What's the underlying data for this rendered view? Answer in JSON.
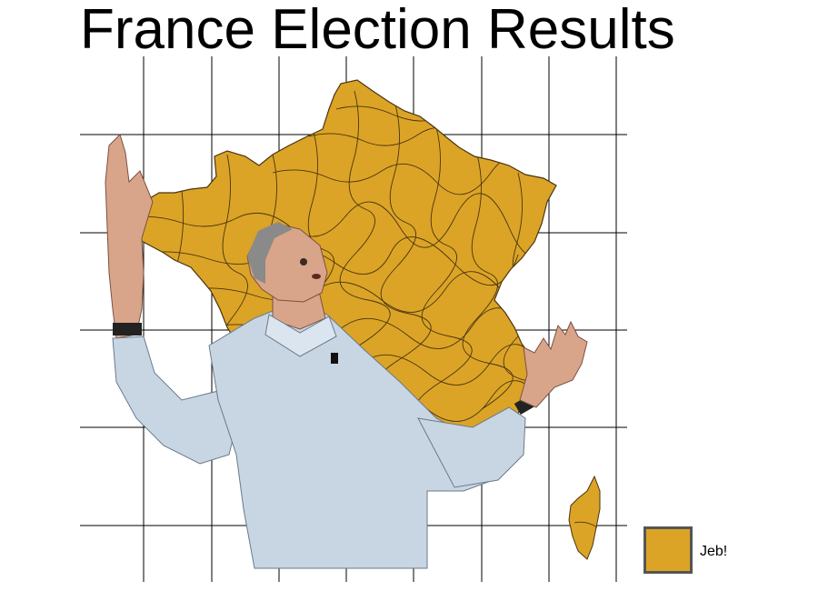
{
  "title": "France Election Results",
  "map": {
    "region_color": "#DBA426",
    "border_color": "#4a3410",
    "grid_color": "#000000",
    "person": {
      "shirt_color": "#c8d6e4",
      "skin_color": "#d9a58a",
      "hair_color": "#8a8a8a"
    }
  },
  "legend": {
    "entries": [
      {
        "label": "Jeb!",
        "color": "#DBA426",
        "border_color": "#555555"
      }
    ]
  }
}
